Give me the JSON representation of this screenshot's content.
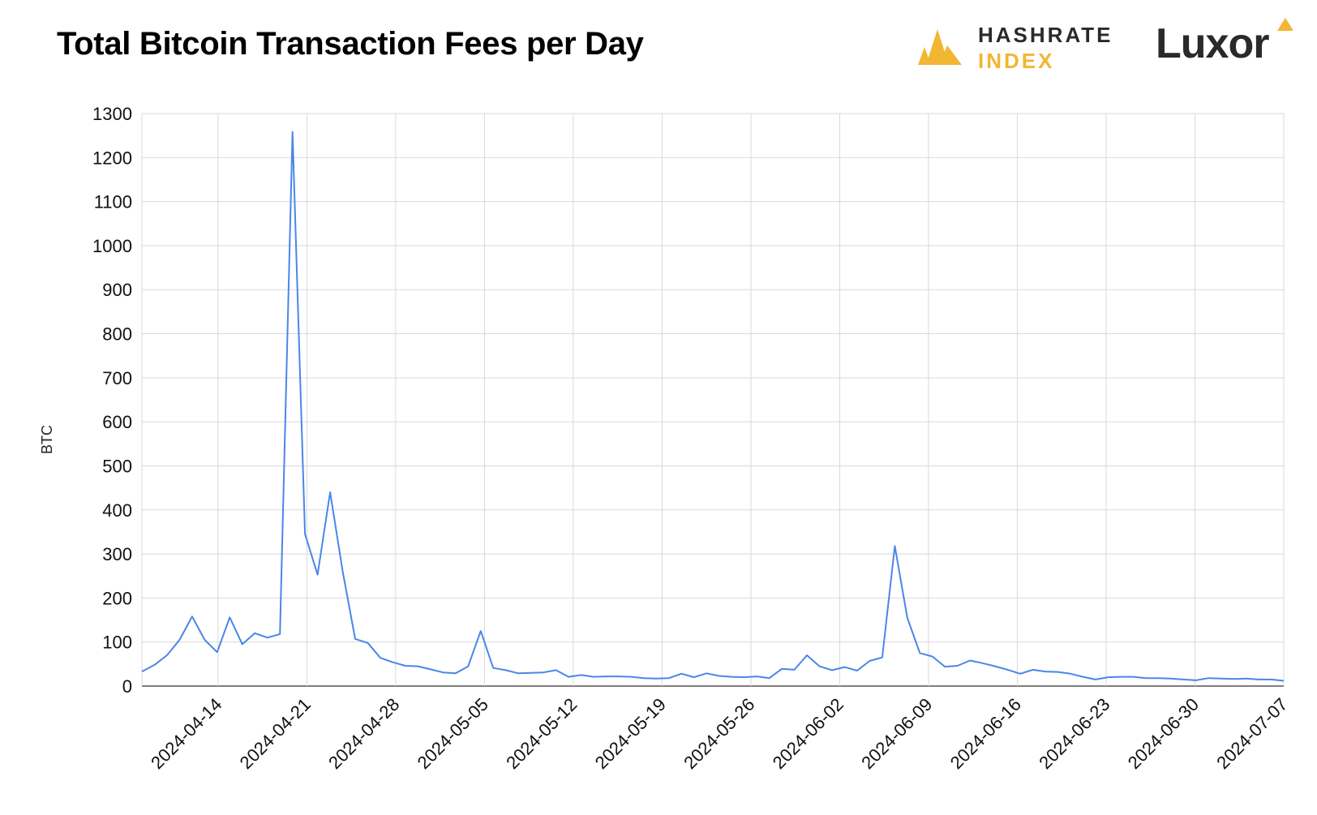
{
  "header": {
    "title": "Total Bitcoin Transaction Fees per Day"
  },
  "brands": {
    "hashrate_line1": "HASHRATE",
    "hashrate_line2": "INDEX",
    "luxor": "Luxor",
    "accent_color": "#f2b632"
  },
  "chart_data": {
    "type": "line",
    "title": "Total Bitcoin Transaction Fees per Day",
    "xlabel": "",
    "ylabel": "BTC",
    "ylim": [
      0,
      1300
    ],
    "yticks": [
      0,
      100,
      200,
      300,
      400,
      500,
      600,
      700,
      800,
      900,
      1000,
      1100,
      1200,
      1300
    ],
    "x_tick_labels": [
      "2024-04-14",
      "2024-04-21",
      "2024-04-28",
      "2024-05-05",
      "2024-05-12",
      "2024-05-19",
      "2024-05-26",
      "2024-06-02",
      "2024-06-09",
      "2024-06-16",
      "2024-06-23",
      "2024-06-30",
      "2024-07-07"
    ],
    "x_start": "2024-04-08",
    "x_end": "2024-07-07",
    "grid": true,
    "line_color": "#4a86e8",
    "series": [
      {
        "values": [
          33,
          48,
          70,
          105,
          158,
          105,
          77,
          156,
          95,
          120,
          110,
          118,
          1258,
          345,
          253,
          440,
          260,
          107,
          98,
          64,
          54,
          46,
          45,
          38,
          31,
          29,
          45,
          125,
          41,
          36,
          29,
          30,
          31,
          36,
          21,
          25,
          21,
          22,
          22,
          21,
          18,
          17,
          18,
          28,
          20,
          29,
          23,
          21,
          20,
          22,
          18,
          39,
          37,
          70,
          45,
          36,
          43,
          35,
          57,
          65,
          318,
          155,
          75,
          67,
          44,
          46,
          58,
          52,
          45,
          37,
          28,
          37,
          33,
          32,
          28,
          21,
          15,
          20,
          21,
          21,
          18,
          18,
          17,
          15,
          13,
          18,
          17,
          16,
          17,
          15,
          15,
          12
        ]
      }
    ]
  }
}
